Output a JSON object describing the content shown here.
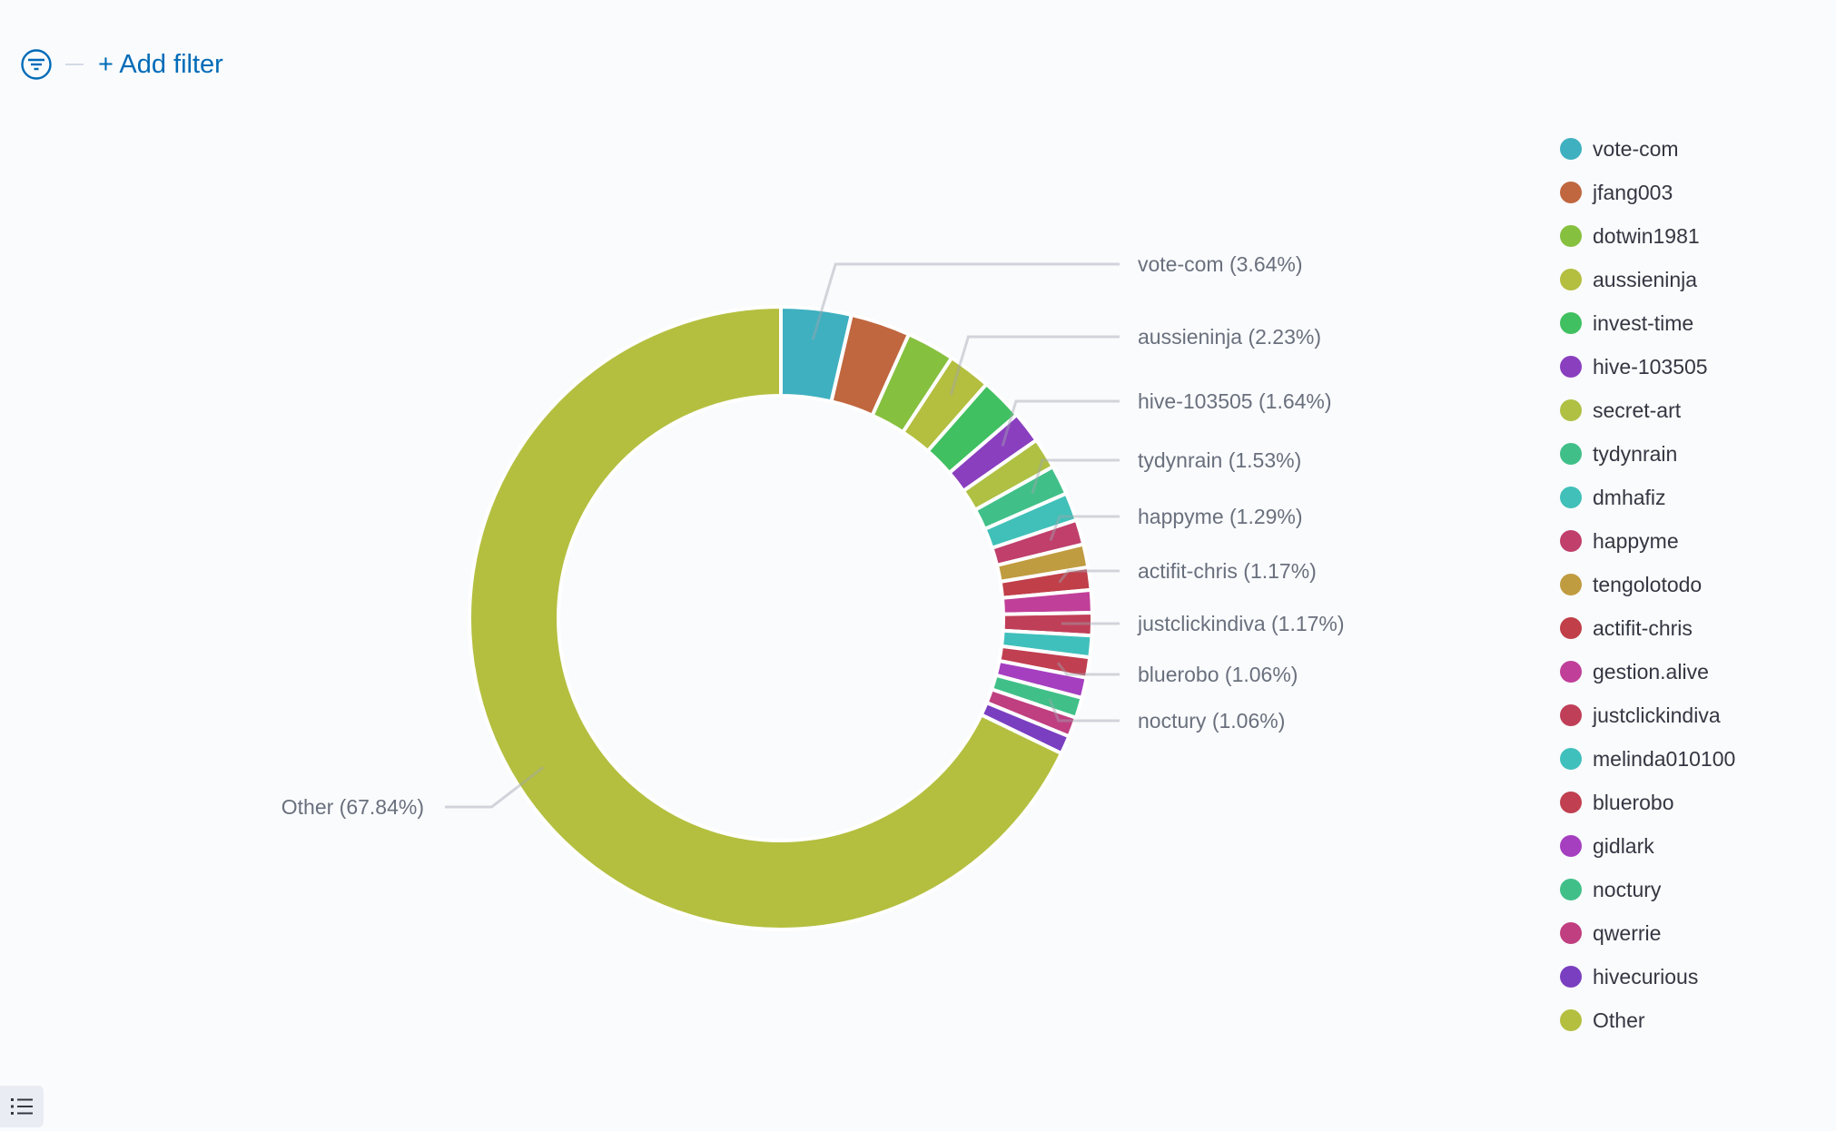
{
  "filter_bar": {
    "add_filter_label": "+ Add filter",
    "icon": "filter-icon"
  },
  "legend_toggle_icon": "list-icon",
  "chart_data": {
    "type": "pie",
    "donut": true,
    "legend_position": "right",
    "slices": [
      {
        "label": "vote-com",
        "value": 3.64,
        "color": "#3fb0c0",
        "callout": "vote-com (3.64%)"
      },
      {
        "label": "jfang003",
        "value": 3.1,
        "color": "#c0673f"
      },
      {
        "label": "dotwin1981",
        "value": 2.5,
        "color": "#86c03f"
      },
      {
        "label": "aussieninja",
        "value": 2.23,
        "color": "#b4be3f",
        "callout": "aussieninja (2.23%)"
      },
      {
        "label": "invest-time",
        "value": 2.2,
        "color": "#40c061"
      },
      {
        "label": "hive-103505",
        "value": 1.64,
        "color": "#8a3fbf",
        "callout": "hive-103505 (1.64%)"
      },
      {
        "label": "secret-art",
        "value": 1.6,
        "color": "#afc043"
      },
      {
        "label": "tydynrain",
        "value": 1.53,
        "color": "#40c088",
        "callout": "tydynrain (1.53%)"
      },
      {
        "label": "dmhafiz",
        "value": 1.45,
        "color": "#40c0b8"
      },
      {
        "label": "happyme",
        "value": 1.29,
        "color": "#c03f6b",
        "callout": "happyme (1.29%)"
      },
      {
        "label": "tengolotodo",
        "value": 1.2,
        "color": "#c09c40"
      },
      {
        "label": "actifit-chris",
        "value": 1.17,
        "color": "#c03f48",
        "callout": "actifit-chris (1.17%)"
      },
      {
        "label": "gestion.alive",
        "value": 1.17,
        "color": "#c03f98"
      },
      {
        "label": "justclickindiva",
        "value": 1.17,
        "color": "#c03f58",
        "callout": "justclickindiva (1.17%)"
      },
      {
        "label": "melinda010100",
        "value": 1.12,
        "color": "#40c0bc"
      },
      {
        "label": "bluerobo",
        "value": 1.06,
        "color": "#c03f50",
        "callout": "bluerobo (1.06%)"
      },
      {
        "label": "gidlark",
        "value": 1.05,
        "color": "#a53fc0"
      },
      {
        "label": "noctury",
        "value": 1.06,
        "color": "#40c088",
        "callout": "noctury (1.06%)"
      },
      {
        "label": "qwerrie",
        "value": 1.02,
        "color": "#c03f80"
      },
      {
        "label": "hivecurious",
        "value": 0.95,
        "color": "#7a3fc0"
      },
      {
        "label": "Other",
        "value": 67.84,
        "color": "#b4bf3f",
        "callout": "Other (67.84%)"
      }
    ]
  }
}
